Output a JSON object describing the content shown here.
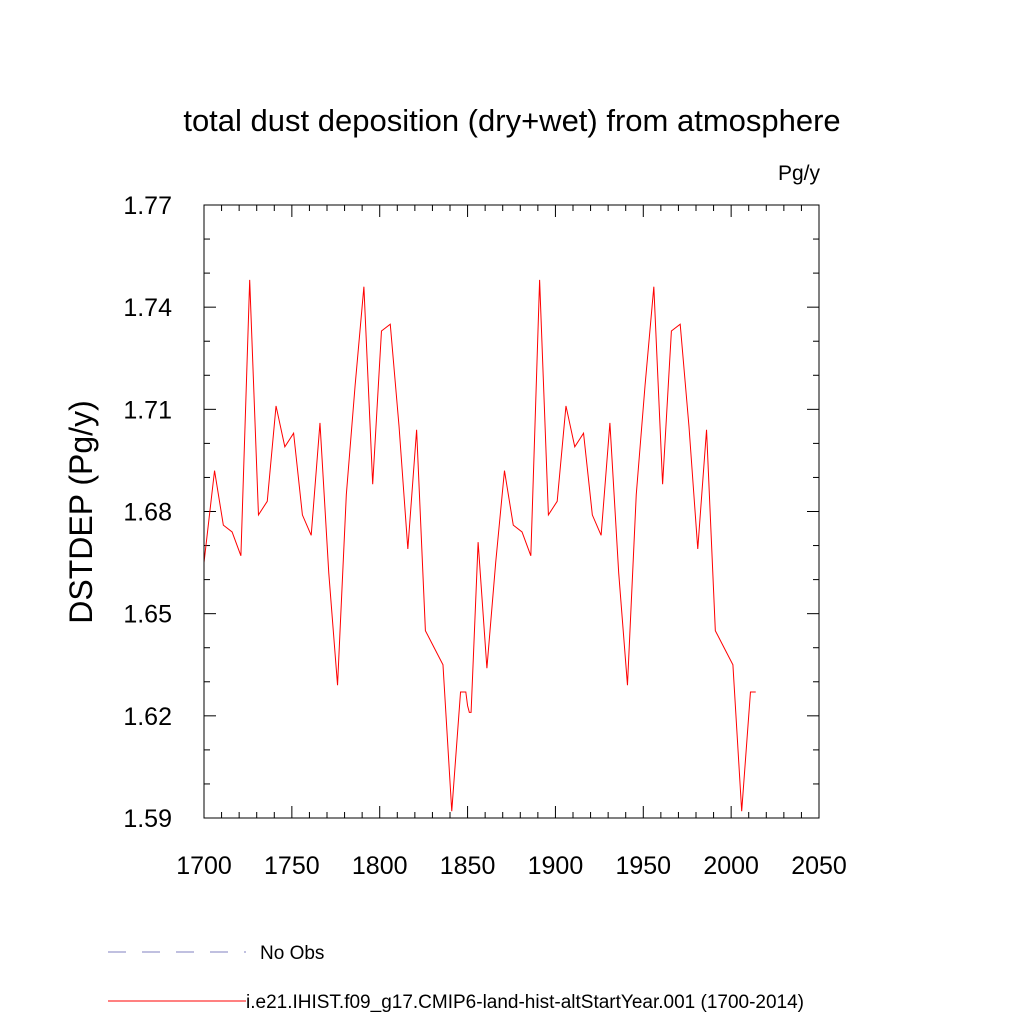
{
  "chart_data": {
    "type": "line",
    "title": "total dust deposition (dry+wet) from atmosphere",
    "units_label": "Pg/y",
    "ylabel": "DSTDEP  (Pg/y)",
    "xlabel": "",
    "xlim": [
      1700,
      2050
    ],
    "ylim": [
      1.59,
      1.77
    ],
    "x_ticks": [
      1700,
      1750,
      1800,
      1850,
      1900,
      1950,
      2000,
      2050
    ],
    "x_tick_labels": [
      "1700",
      "1750",
      "1800",
      "1850",
      "1900",
      "1950",
      "2000",
      "2050"
    ],
    "y_ticks": [
      1.59,
      1.62,
      1.65,
      1.68,
      1.71,
      1.74,
      1.77
    ],
    "y_tick_labels": [
      "1.59",
      "1.62",
      "1.65",
      "1.68",
      "1.71",
      "1.74",
      "1.77"
    ],
    "grid": false,
    "legend_position": "bottom",
    "series": [
      {
        "name": "No Obs",
        "color": "#8080c0",
        "dash": "dashed",
        "x": [],
        "y": []
      },
      {
        "name": "i.e21.IHIST.f09_g17.CMIP6-land-hist-altStartYear.001 (1700-2014)",
        "color": "#ff0000",
        "dash": "solid",
        "x": [
          1700,
          1706,
          1711,
          1716,
          1721,
          1726,
          1731,
          1736,
          1741,
          1746,
          1751,
          1756,
          1761,
          1766,
          1771,
          1776,
          1781,
          1786,
          1791,
          1796,
          1801,
          1806,
          1811,
          1816,
          1821,
          1826,
          1831,
          1836,
          1841,
          1846,
          1849,
          1850,
          1851,
          1852,
          1856,
          1861,
          1866,
          1871,
          1876,
          1881,
          1886,
          1891,
          1896,
          1901,
          1906,
          1911,
          1916,
          1921,
          1926,
          1931,
          1936,
          1941,
          1946,
          1951,
          1956,
          1961,
          1966,
          1971,
          1976,
          1981,
          1986,
          1991,
          1996,
          2001,
          2006,
          2011,
          2014
        ],
        "y": [
          1.665,
          1.692,
          1.676,
          1.674,
          1.667,
          1.748,
          1.679,
          1.683,
          1.711,
          1.699,
          1.703,
          1.679,
          1.673,
          1.706,
          1.662,
          1.629,
          1.685,
          1.717,
          1.746,
          1.688,
          1.733,
          1.735,
          1.705,
          1.669,
          1.704,
          1.645,
          1.64,
          1.635,
          1.592,
          1.627,
          1.627,
          1.623,
          1.621,
          1.621,
          1.671,
          1.634,
          1.665,
          1.692,
          1.676,
          1.674,
          1.667,
          1.748,
          1.679,
          1.683,
          1.711,
          1.699,
          1.703,
          1.679,
          1.673,
          1.706,
          1.662,
          1.629,
          1.685,
          1.717,
          1.746,
          1.688,
          1.733,
          1.735,
          1.705,
          1.669,
          1.704,
          1.645,
          1.64,
          1.635,
          1.592,
          1.627,
          1.627
        ]
      }
    ]
  }
}
